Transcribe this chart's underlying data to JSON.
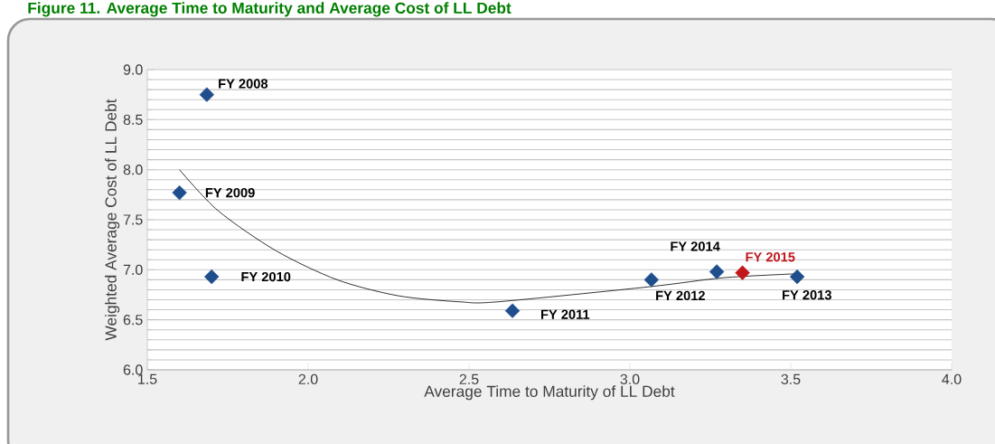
{
  "chart_data": {
    "type": "scatter",
    "title": "Figure 11. Average Time to Maturity and Average Cost of LL Debt",
    "xlabel": "Average Time to Maturity of LL Debt",
    "ylabel": "Weighted Average Cost of LL Debt",
    "xlim": [
      1.5,
      4.0
    ],
    "ylim": [
      6.0,
      9.0
    ],
    "xticks": [
      {
        "value": 1.5,
        "label": "1.5"
      },
      {
        "value": 2.0,
        "label": "2.0"
      },
      {
        "value": 2.5,
        "label": "2.5"
      },
      {
        "value": 3.0,
        "label": "3.0"
      },
      {
        "value": 3.5,
        "label": "3.5"
      },
      {
        "value": 4.0,
        "label": "4.0"
      }
    ],
    "yticks": [
      {
        "value": 6.0,
        "label": "6.0"
      },
      {
        "value": 6.5,
        "label": "6.5"
      },
      {
        "value": 7.0,
        "label": "7.0"
      },
      {
        "value": 7.5,
        "label": "7.5"
      },
      {
        "value": 8.0,
        "label": "8.0"
      },
      {
        "value": 8.5,
        "label": "8.5"
      },
      {
        "value": 9.0,
        "label": "9.0"
      }
    ],
    "grid": "y",
    "marker": "diamond",
    "series": [
      {
        "type": "line",
        "color": "#000000",
        "marker": "none",
        "x": [
          1.6,
          1.72,
          1.9,
          2.09,
          2.28,
          2.47,
          2.59,
          3.06,
          3.29,
          3.52
        ],
        "values": [
          8.0,
          7.59,
          7.19,
          6.9,
          6.74,
          6.68,
          6.68,
          6.83,
          6.92,
          6.96
        ]
      },
      {
        "type": "scatter",
        "color": "#1f4e8c",
        "x": [
          1.685,
          1.6,
          1.7,
          2.635,
          3.067,
          3.27,
          3.52
        ],
        "values": [
          8.75,
          7.77,
          6.93,
          6.59,
          6.9,
          6.98,
          6.93
        ]
      },
      {
        "type": "scatter",
        "name": "FY 2015",
        "color": "#c0161c",
        "x": [
          3.35
        ],
        "values": [
          6.97
        ]
      }
    ],
    "annotations": [
      {
        "text": "FY 2008",
        "x": 1.685,
        "y": 8.75
      },
      {
        "text": "FY 2009",
        "x": 1.6,
        "y": 7.77
      },
      {
        "text": "FY 2010",
        "x": 1.7,
        "y": 6.93
      },
      {
        "text": "FY 2011",
        "x": 2.635,
        "y": 6.59
      },
      {
        "text": "FY 2012",
        "x": 3.067,
        "y": 6.9
      },
      {
        "text": "FY 2014",
        "x": 3.27,
        "y": 6.98
      },
      {
        "text": "FY 2013",
        "x": 3.52,
        "y": 6.93
      }
    ]
  }
}
